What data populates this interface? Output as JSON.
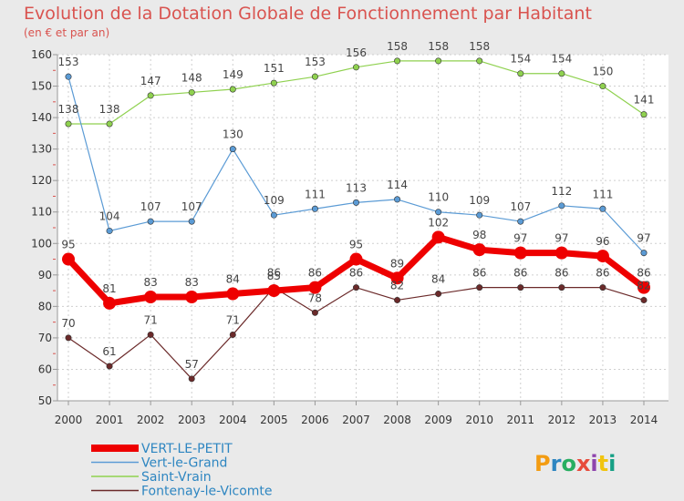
{
  "chart_data": {
    "type": "line",
    "title": "Evolution de la Dotation Globale de Fonctionnement par Habitant",
    "subtitle": "(en € et par an)",
    "xlabel": "",
    "ylabel": "",
    "x": [
      "2000",
      "2001",
      "2002",
      "2003",
      "2004",
      "2005",
      "2006",
      "2007",
      "2008",
      "2009",
      "2010",
      "2011",
      "2012",
      "2013",
      "2014"
    ],
    "ylim": [
      50,
      160
    ],
    "yticks": [
      "50",
      "60",
      "70",
      "80",
      "90",
      "100",
      "110",
      "120",
      "130",
      "140",
      "150",
      "160"
    ],
    "grid": true,
    "legend_position": "bottom-left",
    "series": [
      {
        "name": "VERT-LE-PETIT",
        "color": "#ee0000",
        "values": [
          95,
          81,
          83,
          83,
          84,
          85,
          86,
          95,
          89,
          102,
          98,
          97,
          97,
          96,
          86
        ]
      },
      {
        "name": "Vert-le-Grand",
        "color": "#5b9bd5",
        "values": [
          153,
          104,
          107,
          107,
          130,
          109,
          111,
          113,
          114,
          110,
          109,
          107,
          112,
          111,
          97
        ]
      },
      {
        "name": "Saint-Vrain",
        "color": "#8fd14f",
        "values": [
          138,
          138,
          147,
          148,
          149,
          151,
          153,
          156,
          158,
          158,
          158,
          154,
          154,
          150,
          141
        ]
      },
      {
        "name": "Fontenay-le-Vicomte",
        "color": "#6b2a2a",
        "values": [
          70,
          61,
          71,
          57,
          71,
          86,
          78,
          86,
          82,
          84,
          86,
          86,
          86,
          86,
          82
        ]
      }
    ]
  },
  "brand": {
    "text": "Proxiti",
    "colors": [
      "#f39c12",
      "#2e86c1",
      "#27ae60",
      "#e74c3c",
      "#8e44ad",
      "#f1c40f",
      "#16a085"
    ]
  }
}
